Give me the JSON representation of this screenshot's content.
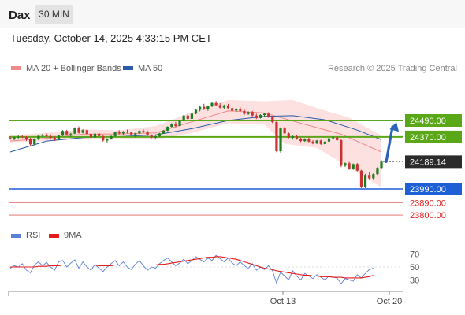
{
  "header": {
    "symbol": "Dax",
    "timeframe_button": "30 MIN",
    "datetime": "Tuesday, October 14, 2025 4:33:15 PM CET"
  },
  "legend": {
    "items": [
      {
        "label": "MA 20 + Bollinger Bands",
        "color": "#f08a8a"
      },
      {
        "label": "MA 50",
        "color": "#2a5ca8"
      }
    ],
    "credit": "Research © 2025 Trading Central"
  },
  "rsi_legend": {
    "items": [
      {
        "label": "RSI",
        "color": "#5b7fd6"
      },
      {
        "label": "9MA",
        "color": "#e41b1b"
      }
    ]
  },
  "colors": {
    "resistance": "#5aa818",
    "support": "#1f5fd6",
    "support_thin": "#e06060",
    "arrow": "#2a63b8",
    "candle_up": "#1e7d1e",
    "candle_down": "#c83232",
    "bollinger_fill": "#fde0e0"
  },
  "chart_data": [
    {
      "type": "candlestick",
      "series_note": "",
      "ylim": [
        23760,
        24620
      ],
      "x_ticks": [
        "Oct 13",
        "Oct 20"
      ],
      "current_price": "24189.14",
      "levels": [
        {
          "value": 24490.0,
          "label": "24490.00",
          "kind": "resistance"
        },
        {
          "value": 24370.0,
          "label": "24370.00",
          "kind": "resistance"
        },
        {
          "value": 23990.0,
          "label": "23990.00",
          "kind": "support"
        },
        {
          "value": 23890.0,
          "label": "23890.00",
          "kind": "support-minor"
        },
        {
          "value": 23800.0,
          "label": "23800.00",
          "kind": "support-minor"
        }
      ],
      "forecast_arrow": {
        "from": 24189,
        "to": 24490,
        "direction": "up"
      },
      "candles": [
        [
          24362,
          24374,
          24350,
          24358
        ],
        [
          24358,
          24370,
          24346,
          24366
        ],
        [
          24366,
          24380,
          24356,
          24372
        ],
        [
          24372,
          24384,
          24362,
          24368
        ],
        [
          24368,
          24376,
          24340,
          24352
        ],
        [
          24352,
          24364,
          24300,
          24316
        ],
        [
          24316,
          24360,
          24308,
          24356
        ],
        [
          24356,
          24382,
          24346,
          24378
        ],
        [
          24378,
          24392,
          24366,
          24384
        ],
        [
          24384,
          24396,
          24370,
          24376
        ],
        [
          24376,
          24388,
          24356,
          24364
        ],
        [
          24364,
          24376,
          24340,
          24350
        ],
        [
          24350,
          24384,
          24346,
          24380
        ],
        [
          24380,
          24420,
          24376,
          24414
        ],
        [
          24414,
          24422,
          24380,
          24388
        ],
        [
          24388,
          24400,
          24370,
          24394
        ],
        [
          24394,
          24440,
          24390,
          24436
        ],
        [
          24436,
          24446,
          24394,
          24400
        ],
        [
          24400,
          24426,
          24396,
          24420
        ],
        [
          24420,
          24428,
          24386,
          24392
        ],
        [
          24392,
          24398,
          24360,
          24368
        ],
        [
          24368,
          24400,
          24364,
          24394
        ],
        [
          24394,
          24404,
          24370,
          24376
        ],
        [
          24376,
          24382,
          24336,
          24344
        ],
        [
          24344,
          24360,
          24330,
          24354
        ],
        [
          24354,
          24380,
          24350,
          24376
        ],
        [
          24376,
          24410,
          24370,
          24404
        ],
        [
          24404,
          24420,
          24388,
          24396
        ],
        [
          24396,
          24414,
          24382,
          24408
        ],
        [
          24408,
          24424,
          24396,
          24402
        ],
        [
          24402,
          24410,
          24380,
          24388
        ],
        [
          24388,
          24400,
          24368,
          24396
        ],
        [
          24396,
          24420,
          24390,
          24414
        ],
        [
          24414,
          24426,
          24398,
          24404
        ],
        [
          24404,
          24416,
          24376,
          24382
        ],
        [
          24382,
          24388,
          24360,
          24366
        ],
        [
          24366,
          24380,
          24356,
          24376
        ],
        [
          24376,
          24400,
          24370,
          24396
        ],
        [
          24396,
          24420,
          24392,
          24416
        ],
        [
          24416,
          24448,
          24412,
          24444
        ],
        [
          24444,
          24470,
          24438,
          24466
        ],
        [
          24466,
          24480,
          24440,
          24450
        ],
        [
          24450,
          24494,
          24446,
          24488
        ],
        [
          24488,
          24530,
          24484,
          24526
        ],
        [
          24526,
          24540,
          24496,
          24502
        ],
        [
          24502,
          24546,
          24498,
          24540
        ],
        [
          24540,
          24574,
          24536,
          24568
        ],
        [
          24568,
          24600,
          24556,
          24590
        ],
        [
          24590,
          24612,
          24566,
          24574
        ],
        [
          24574,
          24600,
          24560,
          24594
        ],
        [
          24594,
          24624,
          24588,
          24618
        ],
        [
          24618,
          24632,
          24596,
          24602
        ],
        [
          24602,
          24616,
          24578,
          24584
        ],
        [
          24584,
          24606,
          24572,
          24600
        ],
        [
          24600,
          24612,
          24574,
          24580
        ],
        [
          24580,
          24592,
          24556,
          24562
        ],
        [
          24562,
          24580,
          24552,
          24576
        ],
        [
          24576,
          24588,
          24554,
          24560
        ],
        [
          24560,
          24570,
          24530,
          24538
        ],
        [
          24538,
          24556,
          24530,
          24552
        ],
        [
          24552,
          24560,
          24520,
          24526
        ],
        [
          24526,
          24540,
          24500,
          24508
        ],
        [
          24508,
          24536,
          24504,
          24530
        ],
        [
          24530,
          24546,
          24518,
          24540
        ],
        [
          24540,
          24550,
          24510,
          24516
        ],
        [
          24516,
          24524,
          24470,
          24478
        ],
        [
          24478,
          24486,
          24258,
          24266
        ],
        [
          24266,
          24440,
          24254,
          24432
        ],
        [
          24432,
          24444,
          24392,
          24396
        ],
        [
          24396,
          24402,
          24360,
          24364
        ],
        [
          24364,
          24380,
          24350,
          24374
        ],
        [
          24374,
          24384,
          24350,
          24356
        ],
        [
          24356,
          24366,
          24332,
          24340
        ],
        [
          24340,
          24360,
          24334,
          24354
        ],
        [
          24354,
          24368,
          24330,
          24336
        ],
        [
          24336,
          24346,
          24316,
          24322
        ],
        [
          24322,
          24348,
          24318,
          24344
        ],
        [
          24344,
          24350,
          24312,
          24318
        ],
        [
          24318,
          24340,
          24314,
          24336
        ],
        [
          24336,
          24364,
          24330,
          24360
        ],
        [
          24360,
          24374,
          24348,
          24368
        ],
        [
          24368,
          24376,
          24342,
          24346
        ],
        [
          24346,
          24352,
          24150,
          24160
        ],
        [
          24160,
          24184,
          24150,
          24178
        ],
        [
          24178,
          24188,
          24130,
          24136
        ],
        [
          24136,
          24176,
          24130,
          24172
        ],
        [
          24172,
          24180,
          24118,
          24124
        ],
        [
          24124,
          24130,
          23996,
          24004
        ],
        [
          24004,
          24100,
          23996,
          24092
        ],
        [
          24092,
          24112,
          24060,
          24068
        ],
        [
          24068,
          24104,
          24060,
          24098
        ],
        [
          24098,
          24150,
          24092,
          24144
        ],
        [
          24144,
          24200,
          24138,
          24189
        ]
      ],
      "ma20": [
        [
          0,
          24340
        ],
        [
          9,
          24360
        ],
        [
          18,
          24390
        ],
        [
          27,
          24392
        ],
        [
          36,
          24400
        ],
        [
          45,
          24480
        ],
        [
          54,
          24560
        ],
        [
          63,
          24545
        ],
        [
          66,
          24520
        ],
        [
          72,
          24470
        ],
        [
          82,
          24390
        ],
        [
          92,
          24260
        ]
      ],
      "ma50": [
        [
          0,
          24260
        ],
        [
          9,
          24340
        ],
        [
          18,
          24365
        ],
        [
          27,
          24372
        ],
        [
          36,
          24385
        ],
        [
          45,
          24430
        ],
        [
          54,
          24490
        ],
        [
          63,
          24520
        ],
        [
          70,
          24525
        ],
        [
          78,
          24495
        ],
        [
          86,
          24420
        ],
        [
          92,
          24350
        ]
      ],
      "bb_upper": [
        [
          0,
          24380
        ],
        [
          9,
          24400
        ],
        [
          18,
          24425
        ],
        [
          27,
          24418
        ],
        [
          36,
          24450
        ],
        [
          45,
          24550
        ],
        [
          54,
          24640
        ],
        [
          63,
          24630
        ],
        [
          70,
          24640
        ],
        [
          76,
          24580
        ],
        [
          84,
          24510
        ],
        [
          92,
          24380
        ]
      ],
      "bb_lower": [
        [
          0,
          24330
        ],
        [
          9,
          24340
        ],
        [
          18,
          24355
        ],
        [
          27,
          24360
        ],
        [
          36,
          24350
        ],
        [
          45,
          24400
        ],
        [
          54,
          24470
        ],
        [
          63,
          24460
        ],
        [
          68,
          24320
        ],
        [
          76,
          24290
        ],
        [
          84,
          24150
        ],
        [
          92,
          24000
        ]
      ]
    },
    {
      "type": "line",
      "ylim": [
        17,
        83
      ],
      "y_ticks": [
        70,
        50,
        30
      ],
      "series": [
        {
          "name": "RSI",
          "values": [
            48,
            52,
            50,
            55,
            45,
            41,
            53,
            58,
            52,
            57,
            50,
            45,
            58,
            60,
            50,
            56,
            61,
            48,
            58,
            50,
            45,
            54,
            48,
            43,
            50,
            55,
            60,
            52,
            58,
            50,
            46,
            54,
            60,
            52,
            45,
            50,
            48,
            55,
            60,
            64,
            58,
            52,
            56,
            62,
            55,
            60,
            66,
            62,
            58,
            64,
            60,
            68,
            63,
            58,
            64,
            56,
            52,
            58,
            52,
            48,
            55,
            45,
            50,
            46,
            52,
            44,
            25,
            42,
            36,
            30,
            44,
            36,
            30,
            40,
            36,
            32,
            38,
            34,
            30,
            36,
            34,
            33,
            24,
            32,
            30,
            28,
            38,
            33,
            40,
            46,
            48
          ]
        },
        {
          "name": "9MA",
          "values": [
            50,
            50,
            50,
            50,
            50,
            50,
            50,
            51,
            51,
            51,
            52,
            52,
            52,
            53,
            53,
            53,
            53,
            53,
            53,
            53,
            53,
            53,
            52,
            52,
            52,
            52,
            53,
            53,
            53,
            53,
            53,
            53,
            53,
            53,
            53,
            53,
            53,
            54,
            54,
            55,
            56,
            57,
            58,
            59,
            60,
            61,
            62,
            63,
            64,
            65,
            65,
            66,
            66,
            65,
            64,
            63,
            62,
            60,
            58,
            56,
            54,
            52,
            50,
            48,
            47,
            46,
            44,
            43,
            42,
            41,
            40,
            39,
            38,
            37,
            37,
            36,
            36,
            35,
            35,
            35,
            34,
            34,
            34,
            33,
            33,
            33,
            33,
            33,
            34,
            35,
            37
          ]
        }
      ]
    }
  ]
}
